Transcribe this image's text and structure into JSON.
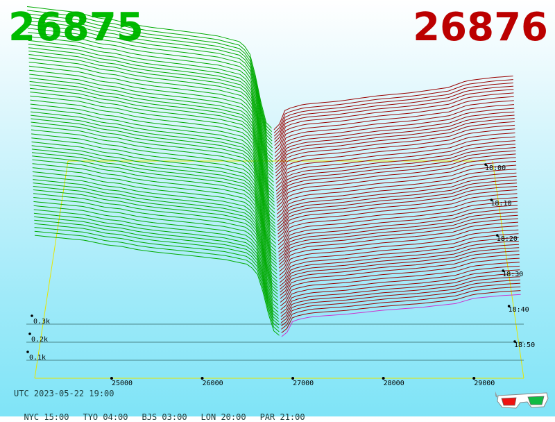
{
  "header": {
    "bid_price": "26875",
    "ask_price": "26876",
    "bid_color": "#00bb00",
    "ask_color": "#bb0000"
  },
  "footer": {
    "utc": "UTC 2023-05-22 19:00",
    "cities": [
      "NYC 15:00",
      "TYO 04:00",
      "BJS 03:00",
      "LON 20:00",
      "PAR 21:00"
    ]
  },
  "glasses_icon": "3d-glasses-icon",
  "chart_data": {
    "type": "area",
    "title": "",
    "xlabel": "",
    "ylabel": "",
    "x_ticks": [
      25000,
      26000,
      27000,
      28000,
      29000
    ],
    "x_tick_labels": [
      "25000",
      "26000",
      "27000",
      "28000",
      "29000"
    ],
    "xlim": [
      24150,
      29550
    ],
    "z_ticks": [
      100,
      200,
      300
    ],
    "z_tick_labels": [
      "0.1k",
      "0.2k",
      "0.3k"
    ],
    "zlim": [
      0,
      400
    ],
    "time_labels": [
      "18:00",
      "18:10",
      "18:20",
      "18:30",
      "18:40",
      "18:50"
    ],
    "mid_price": 26875.5,
    "bid_color": "#00aa00",
    "ask_color": "#990000",
    "latest_ask_color": "#cc33cc",
    "grid_color": "#e6e600",
    "series": [
      {
        "name": "bids",
        "points": [
          [
            24150,
            420
          ],
          [
            24700,
            400
          ],
          [
            24950,
            380
          ],
          [
            25100,
            375
          ],
          [
            25300,
            360
          ],
          [
            25500,
            350
          ],
          [
            25900,
            335
          ],
          [
            26250,
            320
          ],
          [
            26500,
            300
          ],
          [
            26600,
            270
          ],
          [
            26700,
            150
          ],
          [
            26750,
            60
          ],
          [
            26800,
            15
          ],
          [
            26875,
            0
          ]
        ]
      },
      {
        "name": "asks",
        "points": [
          [
            26876,
            0
          ],
          [
            26950,
            20
          ],
          [
            27000,
            60
          ],
          [
            27200,
            75
          ],
          [
            27600,
            85
          ],
          [
            28000,
            100
          ],
          [
            28400,
            110
          ],
          [
            28800,
            125
          ],
          [
            29000,
            145
          ],
          [
            29300,
            155
          ],
          [
            29550,
            160
          ]
        ]
      }
    ]
  }
}
